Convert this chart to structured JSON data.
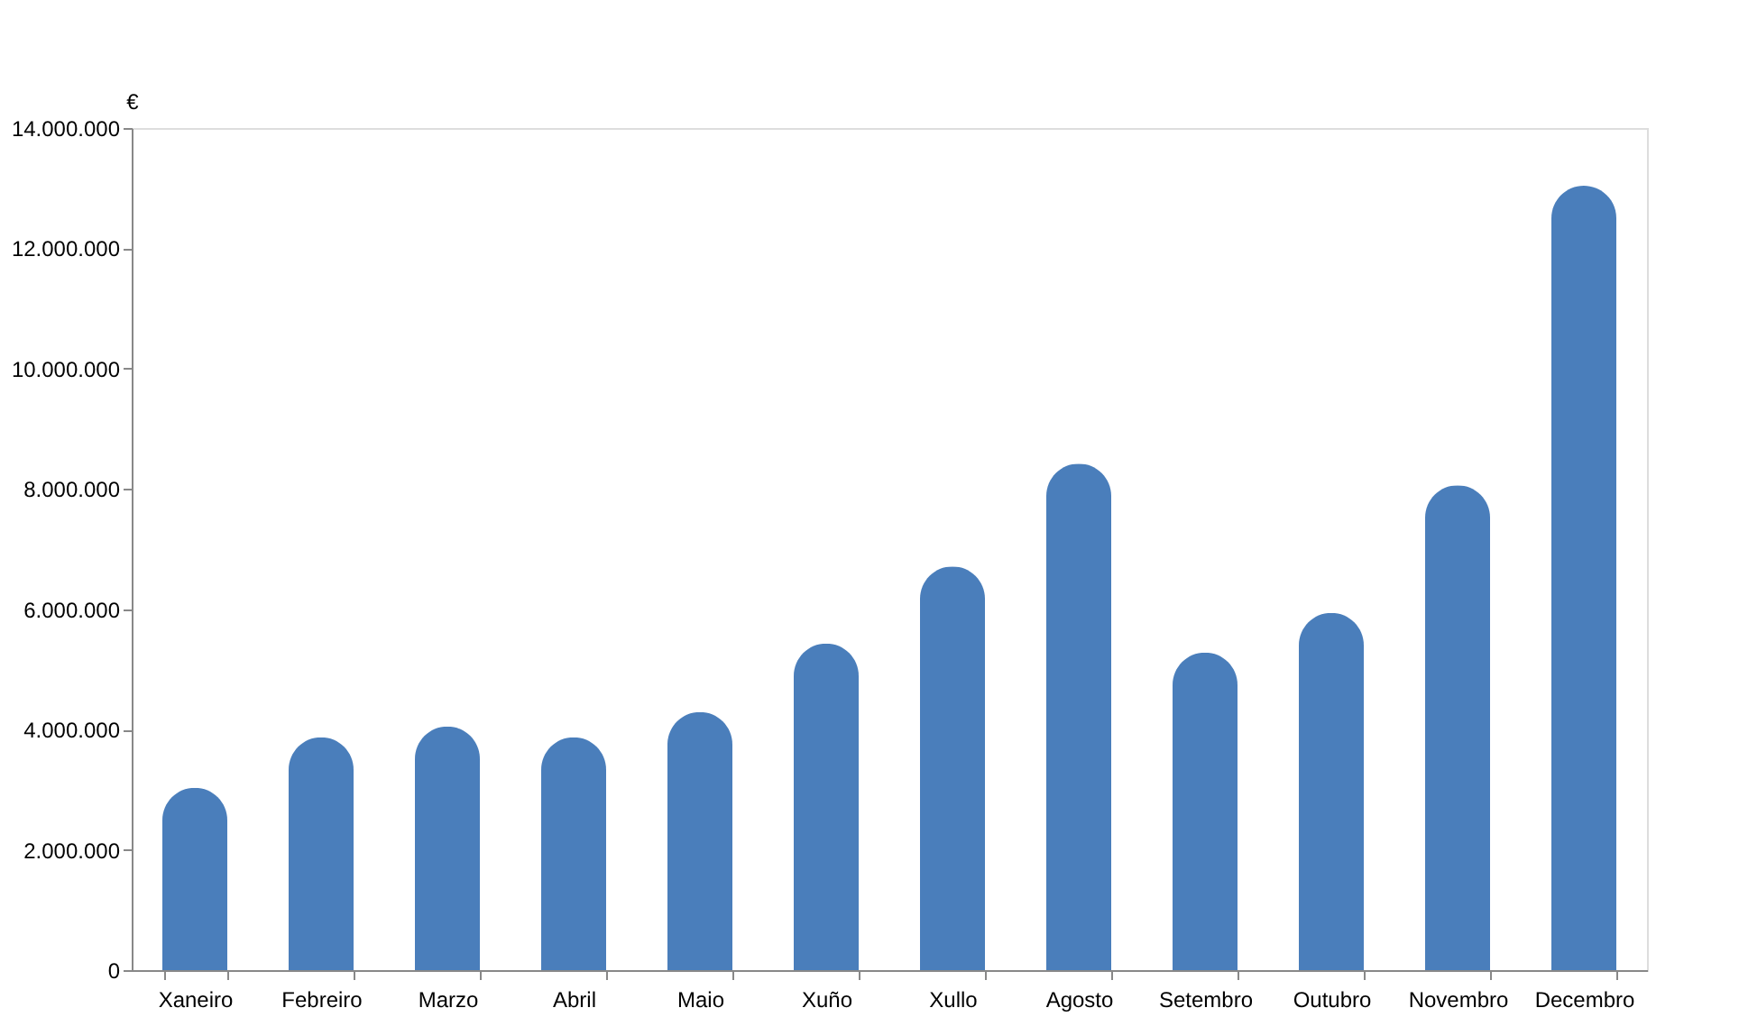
{
  "chart_data": {
    "type": "bar",
    "ylabel": "€",
    "categories": [
      "Xaneiro",
      "Febreiro",
      "Marzo",
      "Abril",
      "Maio",
      "Xuño",
      "Xullo",
      "Agosto",
      "Setembro",
      "Outubro",
      "Novembro",
      "Decembro"
    ],
    "values": [
      3030000,
      3870000,
      4050000,
      3870000,
      4290000,
      5430000,
      6710000,
      8420000,
      5280000,
      5940000,
      8060000,
      13040000
    ],
    "color": "#4a7ebb",
    "ylim": [
      0,
      14000000
    ],
    "yticks": [
      0,
      {
        "value": 2000000,
        "label": "2.000.000"
      },
      {
        "value": 4000000,
        "label": "4.000.000"
      },
      {
        "value": 6000000,
        "label": "6.000.000"
      },
      {
        "value": 8000000,
        "label": "8.000.000"
      },
      {
        "value": 10000000,
        "label": "10.000.000"
      },
      {
        "value": 12000000,
        "label": "12.000.000"
      },
      {
        "value": 14000000,
        "label": "14.000.000"
      }
    ],
    "grid": false
  }
}
